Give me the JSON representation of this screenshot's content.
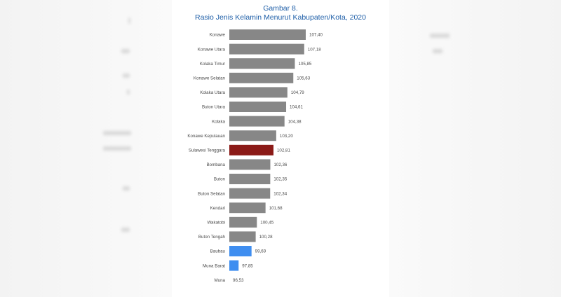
{
  "title": {
    "line1": "Gambar 8.",
    "line2": "Rasio Jenis Kelamin Menurut Kabupaten/Kota, 2020"
  },
  "colors": {
    "default_bar": "#878787",
    "highlight_bar": "#8b1a17",
    "below_100_bar": "#3f8ef0",
    "title": "#1f5fa8"
  },
  "chart_data": {
    "type": "bar",
    "orientation": "horizontal",
    "title": "Rasio Jenis Kelamin Menurut Kabupaten/Kota, 2020",
    "xlabel": "",
    "ylabel": "",
    "grid": false,
    "xlim": [
      90,
      108
    ],
    "categories": [
      "Konawe",
      "Konawe Utara",
      "Kolaka Timur",
      "Konawe Selatan",
      "Kolaka Utara",
      "Buton Utara",
      "Kolaka",
      "Konawe Kepulauan",
      "Sulawesi Tenggara",
      "Bombana",
      "Buton",
      "Buton Selatan",
      "Kendari",
      "Wakatobi",
      "Buton Tengah",
      "Baubau",
      "Muna Barat",
      "Muna"
    ],
    "values": [
      107.4,
      107.18,
      105.85,
      105.63,
      104.79,
      104.61,
      104.38,
      103.2,
      102.81,
      102.36,
      102.35,
      102.34,
      101.68,
      100.45,
      100.28,
      99.69,
      97.85,
      96.53
    ],
    "value_labels": [
      "107,40",
      "107,18",
      "105,85",
      "105,63",
      "104,79",
      "104,61",
      "104,38",
      "103,20",
      "102,81",
      "102,36",
      "102,35",
      "102,34",
      "101,68",
      "100,45",
      "100,28",
      "99,69",
      "97,85",
      "96,53"
    ],
    "bar_colors": [
      "default",
      "default",
      "default",
      "default",
      "default",
      "default",
      "default",
      "default",
      "highlight",
      "default",
      "default",
      "default",
      "default",
      "default",
      "default",
      "below_100",
      "below_100",
      "below_100"
    ]
  }
}
